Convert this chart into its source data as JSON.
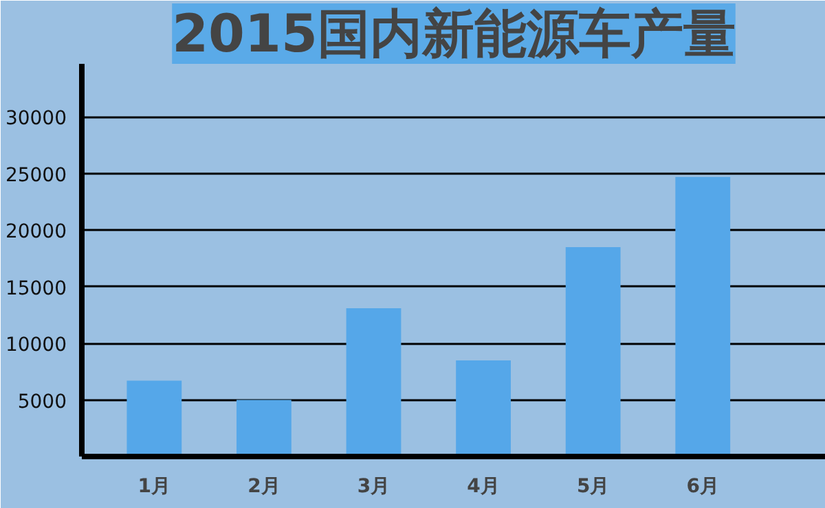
{
  "chart_data": {
    "type": "bar",
    "title": "2015国内新能源车产量",
    "categories": [
      "1月",
      "2月",
      "3月",
      "4月",
      "5月",
      "6月"
    ],
    "values": [
      6700,
      5000,
      13100,
      8500,
      18500,
      24700
    ],
    "color": "#55a7e9",
    "ylim": [
      0,
      34700
    ],
    "yticks": [
      5000,
      10000,
      15000,
      20000,
      25000,
      30000
    ],
    "grid": "y"
  }
}
